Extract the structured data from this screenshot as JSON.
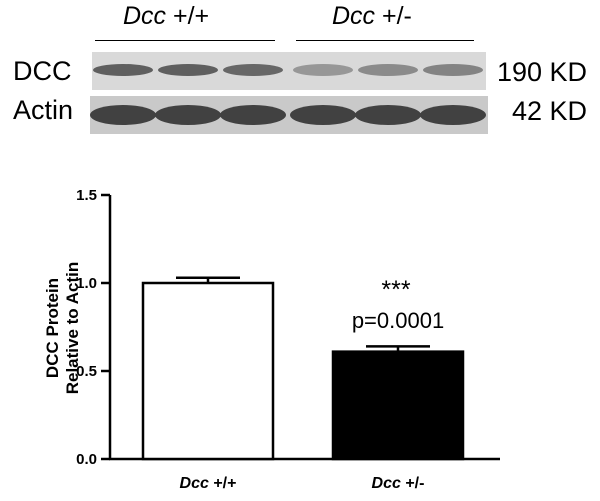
{
  "blot": {
    "groups": [
      {
        "italic": "Dcc",
        "suffix": " +/+"
      },
      {
        "italic": "Dcc",
        "suffix": " +/-"
      }
    ],
    "rows": [
      {
        "label": "DCC",
        "size": "190 KD",
        "band_intensity": [
          0.7,
          0.7,
          0.66,
          0.42,
          0.48,
          0.52
        ]
      },
      {
        "label": "Actin",
        "size": "42 KD",
        "band_intensity": [
          0.85,
          0.85,
          0.85,
          0.85,
          0.85,
          0.85
        ]
      }
    ]
  },
  "chart_data": {
    "type": "bar",
    "categories_italic": [
      "Dcc",
      "Dcc"
    ],
    "categories_suffix": [
      " +/+",
      " +/-"
    ],
    "categories": [
      "Dcc +/+",
      "Dcc +/-"
    ],
    "values": [
      1.0,
      0.61
    ],
    "error": [
      0.03,
      0.03
    ],
    "bar_colors": [
      "#ffffff",
      "#000000"
    ],
    "ylabel": [
      "DCC  Protein",
      "Relative to Actin"
    ],
    "ylim": [
      0,
      1.5
    ],
    "yticks": [
      "0.0",
      "0.5",
      "1.0",
      "1.5"
    ],
    "ytick_values": [
      0,
      0.5,
      1.0,
      1.5
    ],
    "annotation": {
      "stars": "***",
      "pvalue": "p=0.0001",
      "category_index": 1
    }
  }
}
